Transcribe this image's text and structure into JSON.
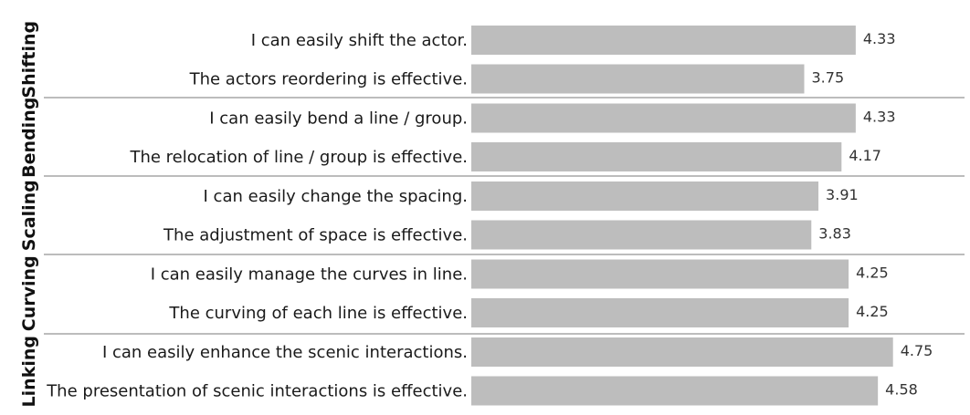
{
  "chart_data": {
    "type": "bar",
    "orientation": "horizontal",
    "xlim": [
      0,
      5
    ],
    "grid": false,
    "legend": "none",
    "bar_color": "#bdbdbd",
    "groups": [
      {
        "name": "Shifting",
        "items": [
          {
            "label": "I can easily shift the actor.",
            "value": 4.33,
            "value_label": "4.33"
          },
          {
            "label": "The actors reordering is effective.",
            "value": 3.75,
            "value_label": "3.75"
          }
        ]
      },
      {
        "name": "Bending",
        "items": [
          {
            "label": "I can easily bend a line / group.",
            "value": 4.33,
            "value_label": "4.33"
          },
          {
            "label": "The relocation of line / group is effective.",
            "value": 4.17,
            "value_label": "4.17"
          }
        ]
      },
      {
        "name": "Scaling",
        "items": [
          {
            "label": "I can easily change the spacing.",
            "value": 3.91,
            "value_label": "3.91"
          },
          {
            "label": "The adjustment of space is effective.",
            "value": 3.83,
            "value_label": "3.83"
          }
        ]
      },
      {
        "name": "Curving",
        "items": [
          {
            "label": "I can easily manage the curves in line.",
            "value": 4.25,
            "value_label": "4.25"
          },
          {
            "label": "The curving of each line is effective.",
            "value": 4.25,
            "value_label": "4.25"
          }
        ]
      },
      {
        "name": "Linking",
        "items": [
          {
            "label": "I can easily enhance the scenic interactions.",
            "value": 4.75,
            "value_label": "4.75"
          },
          {
            "label": "The presentation of scenic interactions is effective.",
            "value": 4.58,
            "value_label": "4.58"
          }
        ]
      }
    ]
  }
}
